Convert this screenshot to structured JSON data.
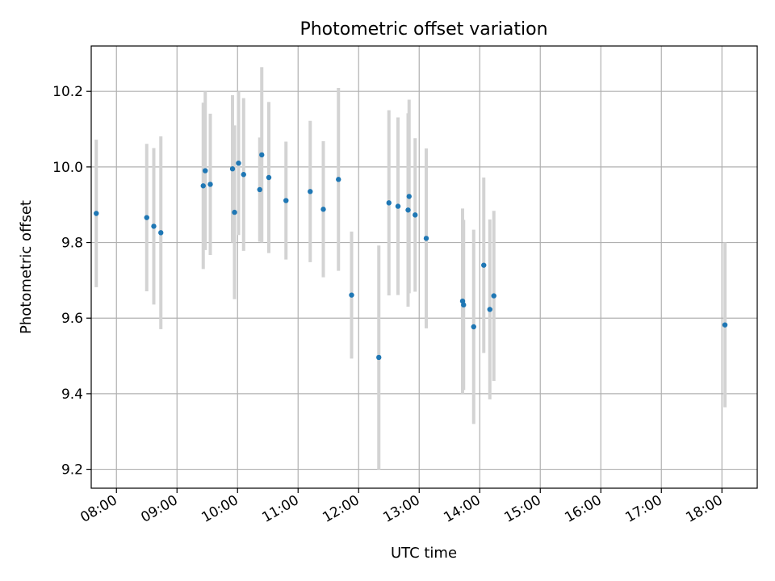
{
  "chart_data": {
    "type": "scatter",
    "title": "Photometric offset variation",
    "xlabel": "UTC time",
    "ylabel": "Photometric offset",
    "x_is_time": true,
    "xlim": [
      "07:35",
      "18:35"
    ],
    "ylim": [
      9.15,
      10.32
    ],
    "x_ticks": [
      "08:00",
      "09:00",
      "10:00",
      "11:00",
      "12:00",
      "13:00",
      "14:00",
      "15:00",
      "16:00",
      "17:00",
      "18:00"
    ],
    "y_ticks": [
      9.2,
      9.4,
      9.6,
      9.8,
      10.0,
      10.2
    ],
    "y_tick_labels": [
      "9.2",
      "9.4",
      "9.6",
      "9.8",
      "10.0",
      "10.2"
    ],
    "grid": true,
    "point_color": "#1f77b4",
    "errorbar_color": "#d3d3d3",
    "series": [
      {
        "points": [
          {
            "x": "07:40",
            "y": 9.877,
            "err": 0.195
          },
          {
            "x": "08:30",
            "y": 9.866,
            "err": 0.195
          },
          {
            "x": "08:37",
            "y": 9.843,
            "err": 0.207
          },
          {
            "x": "08:44",
            "y": 9.826,
            "err": 0.255
          },
          {
            "x": "09:26",
            "y": 9.95,
            "err": 0.22
          },
          {
            "x": "09:28",
            "y": 9.99,
            "err": 0.21
          },
          {
            "x": "09:33",
            "y": 9.954,
            "err": 0.187
          },
          {
            "x": "09:55",
            "y": 9.995,
            "err": 0.195
          },
          {
            "x": "09:57",
            "y": 9.88,
            "err": 0.23
          },
          {
            "x": "10:01",
            "y": 10.01,
            "err": 0.19
          },
          {
            "x": "10:06",
            "y": 9.98,
            "err": 0.202
          },
          {
            "x": "10:22",
            "y": 9.94,
            "err": 0.138
          },
          {
            "x": "10:24",
            "y": 10.032,
            "err": 0.232
          },
          {
            "x": "10:31",
            "y": 9.972,
            "err": 0.2
          },
          {
            "x": "10:48",
            "y": 9.911,
            "err": 0.156
          },
          {
            "x": "11:12",
            "y": 9.935,
            "err": 0.187
          },
          {
            "x": "11:25",
            "y": 9.888,
            "err": 0.18
          },
          {
            "x": "11:40",
            "y": 9.967,
            "err": 0.242
          },
          {
            "x": "11:53",
            "y": 9.661,
            "err": 0.168
          },
          {
            "x": "12:20",
            "y": 9.496,
            "err": 0.296
          },
          {
            "x": "12:30",
            "y": 9.905,
            "err": 0.245
          },
          {
            "x": "12:39",
            "y": 9.896,
            "err": 0.235
          },
          {
            "x": "12:49",
            "y": 9.886,
            "err": 0.256
          },
          {
            "x": "12:50",
            "y": 9.922,
            "err": 0.256
          },
          {
            "x": "12:56",
            "y": 9.873,
            "err": 0.203
          },
          {
            "x": "13:07",
            "y": 9.811,
            "err": 0.238
          },
          {
            "x": "13:43",
            "y": 9.645,
            "err": 0.245
          },
          {
            "x": "13:44",
            "y": 9.635,
            "err": 0.225
          },
          {
            "x": "13:54",
            "y": 9.577,
            "err": 0.257
          },
          {
            "x": "14:04",
            "y": 9.74,
            "err": 0.232
          },
          {
            "x": "14:10",
            "y": 9.623,
            "err": 0.238
          },
          {
            "x": "14:14",
            "y": 9.659,
            "err": 0.225
          },
          {
            "x": "18:03",
            "y": 9.582,
            "err": 0.218
          }
        ]
      }
    ]
  }
}
